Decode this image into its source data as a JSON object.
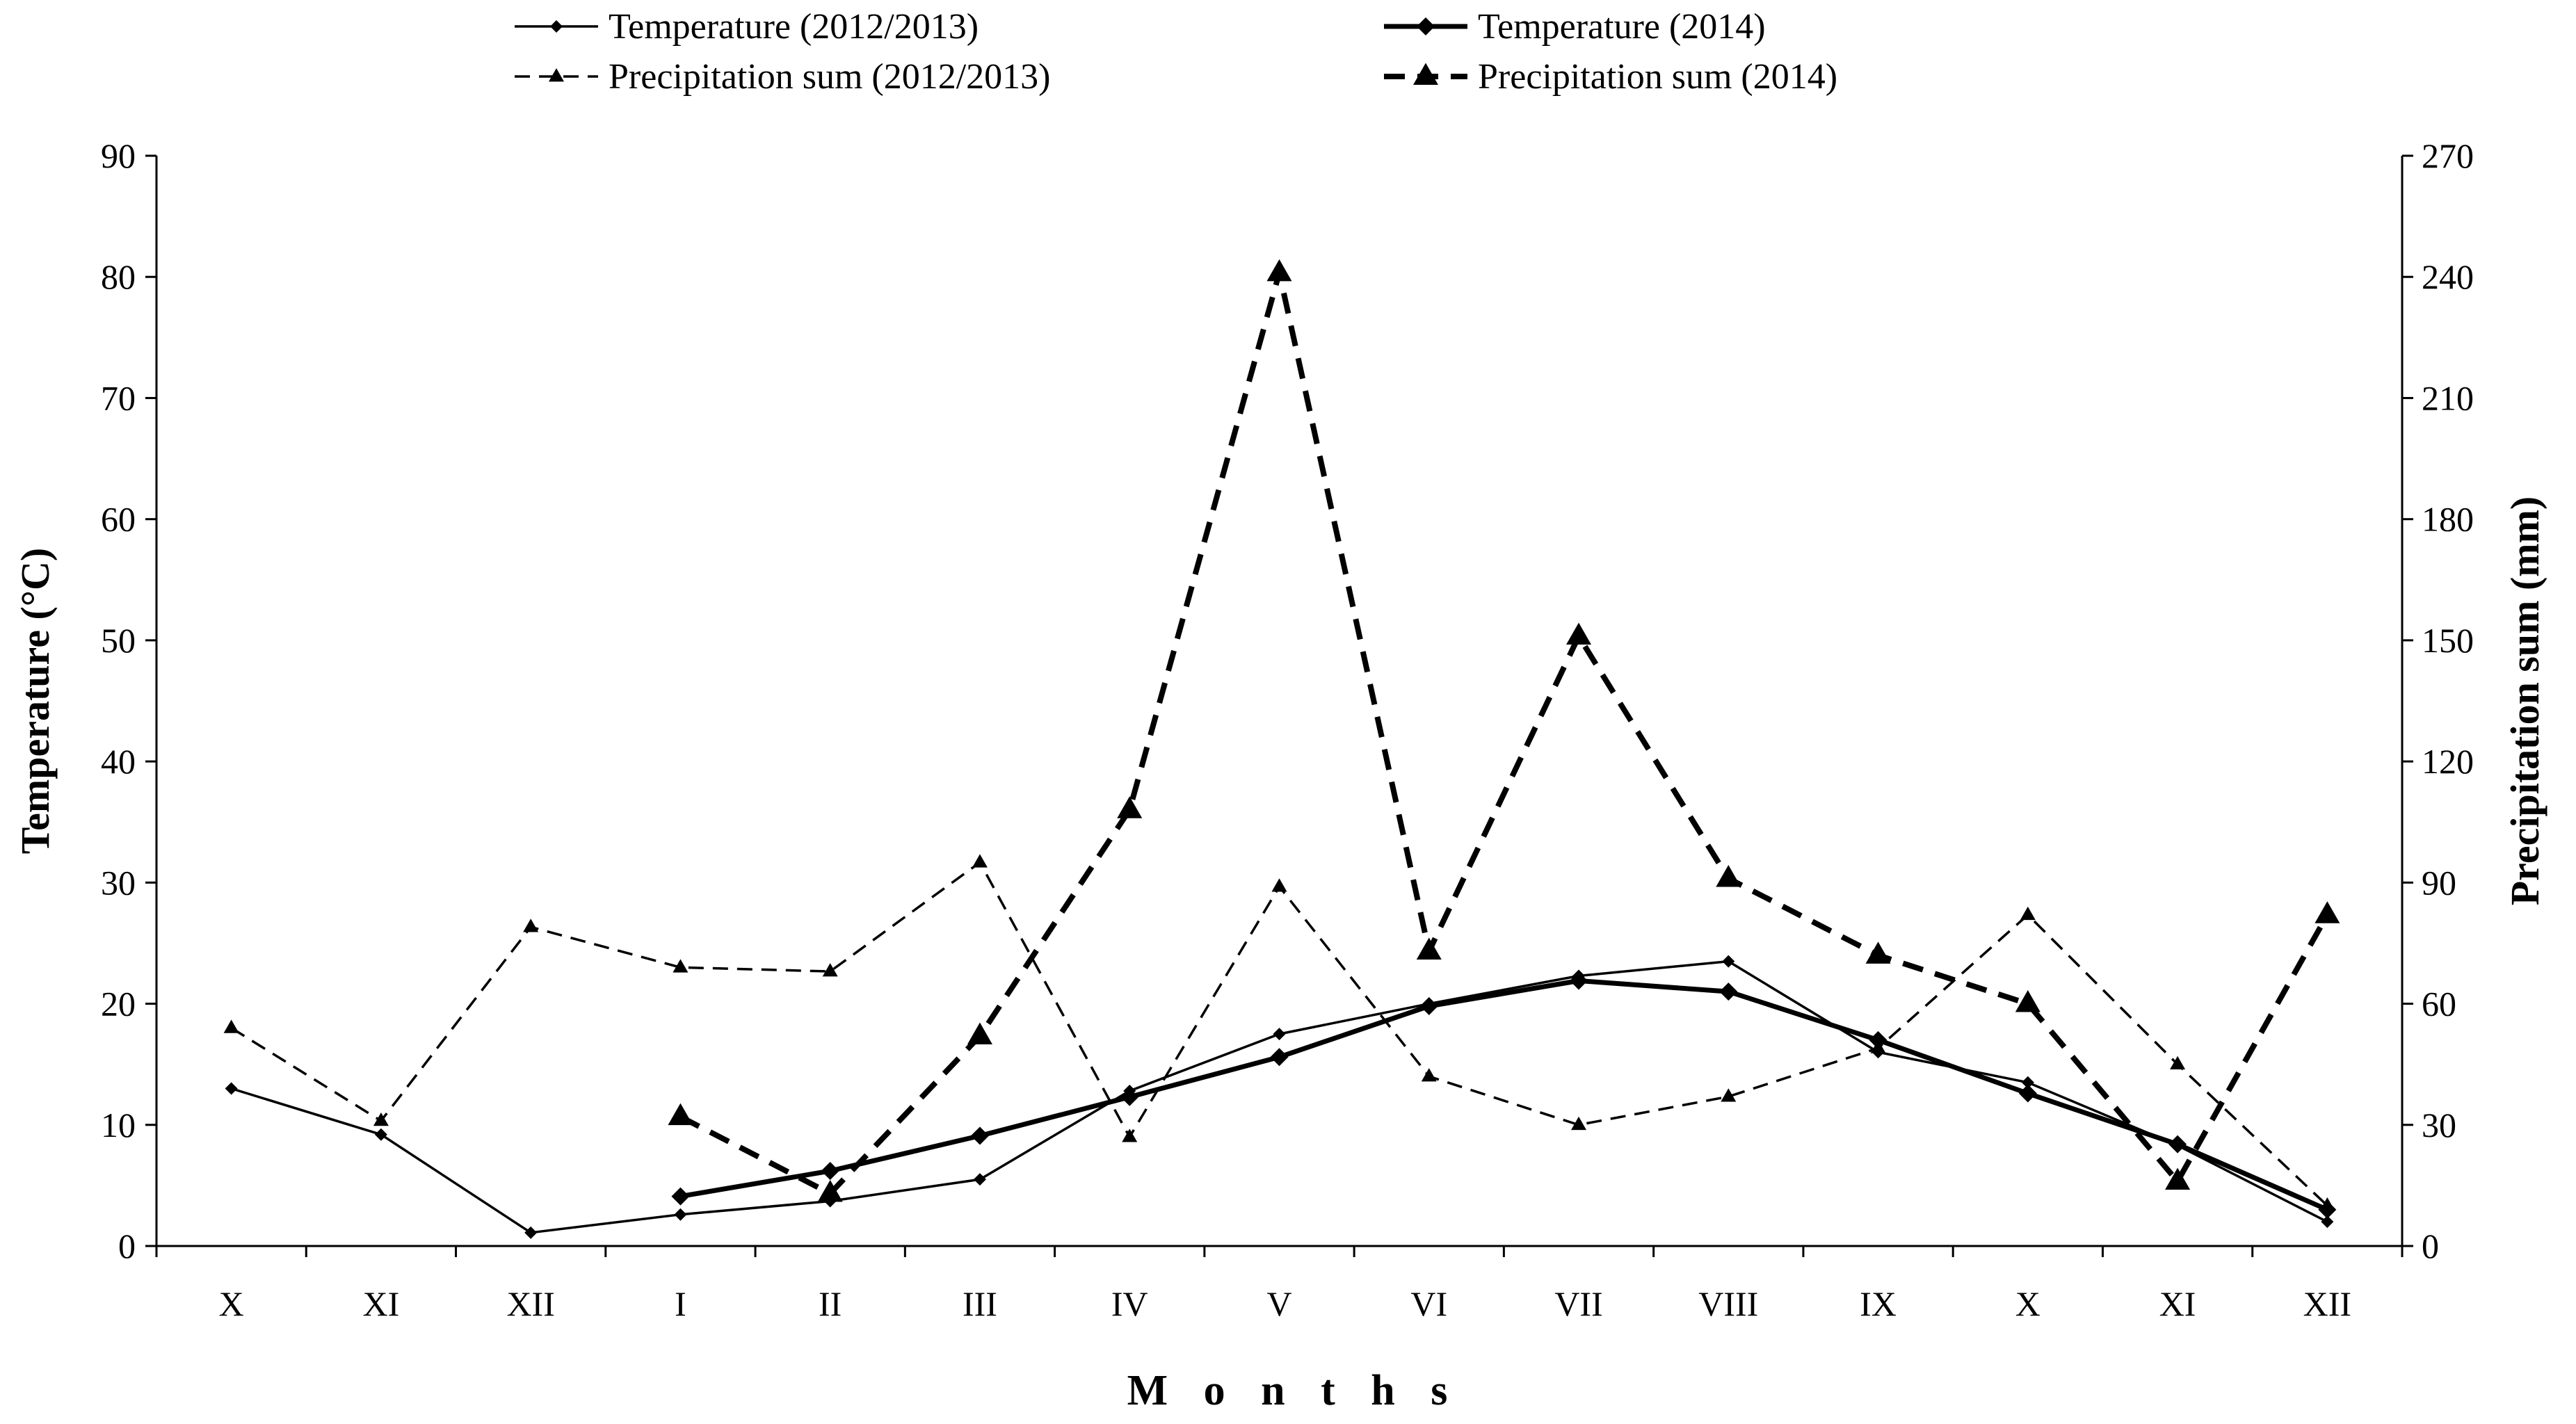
{
  "chart_data": {
    "type": "line",
    "xlabel": "M o n t h s",
    "ylabel_left": "Temperature (°C)",
    "ylabel_right": "Precipitation sum (mm)",
    "ylim_left": [
      0,
      90
    ],
    "ylim_right": [
      0,
      270
    ],
    "yticks_left": [
      0,
      10,
      20,
      30,
      40,
      50,
      60,
      70,
      80,
      90
    ],
    "yticks_right": [
      0,
      30,
      60,
      90,
      120,
      150,
      180,
      210,
      240,
      270
    ],
    "categories": [
      "X",
      "XI",
      "XII",
      "I",
      "II",
      "III",
      "IV",
      "V",
      "VI",
      "VII",
      "VIII",
      "IX",
      "X",
      "XI",
      "XII"
    ],
    "grid": false,
    "legend_position": "top-center",
    "series": [
      {
        "name": "Temperature (2012/2013)",
        "axis": "left",
        "style": "solid-thin",
        "marker": "diamond",
        "values": [
          13.0,
          9.2,
          1.1,
          2.6,
          3.7,
          5.5,
          12.8,
          17.5,
          20.0,
          22.3,
          23.5,
          16.0,
          13.5,
          8.3,
          2.0
        ]
      },
      {
        "name": "Temperature (2014)",
        "axis": "left",
        "style": "solid-thick",
        "marker": "diamond",
        "values": [
          null,
          null,
          null,
          4.1,
          6.2,
          9.1,
          12.3,
          15.6,
          19.8,
          21.9,
          21.0,
          17.0,
          12.6,
          8.4,
          3.0
        ]
      },
      {
        "name": "Precipitation sum (2012/2013)",
        "axis": "right",
        "style": "dashed-thin",
        "marker": "triangle",
        "values": [
          54,
          31,
          79,
          69,
          68,
          95,
          27,
          89,
          42,
          30,
          37,
          49,
          82,
          45,
          10
        ]
      },
      {
        "name": "Precipitation sum (2014)",
        "axis": "right",
        "style": "dashed-thick",
        "marker": "triangle",
        "values": [
          null,
          null,
          null,
          32,
          13,
          52,
          108,
          241,
          73,
          151,
          91,
          72,
          60,
          16,
          82
        ]
      }
    ]
  }
}
